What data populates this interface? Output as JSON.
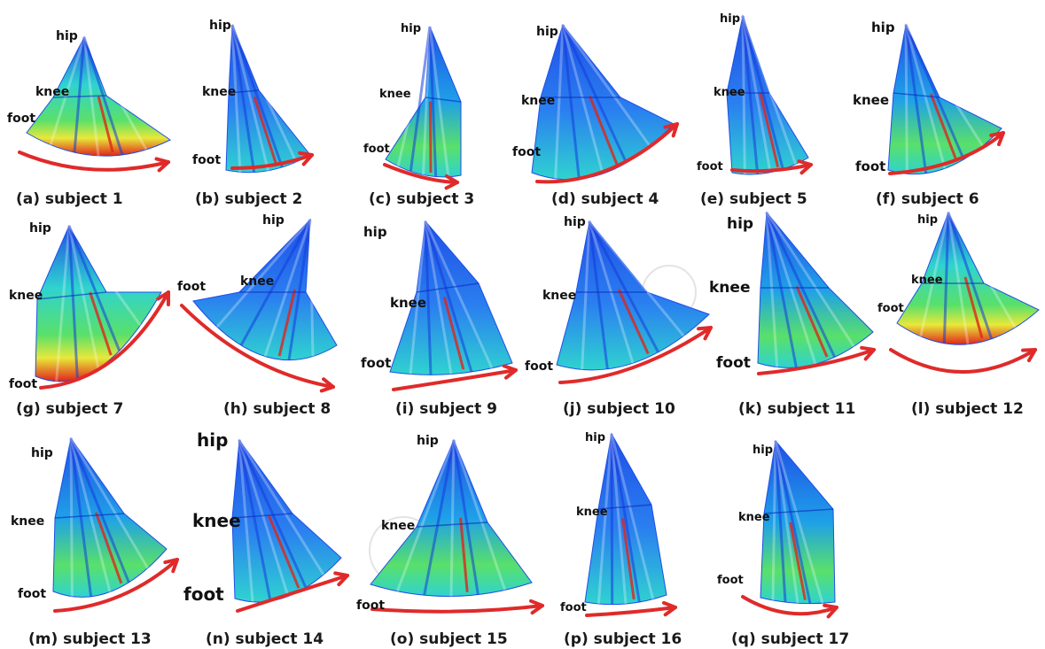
{
  "figure": {
    "joint_labels": {
      "hip": "hip",
      "knee": "knee",
      "foot": "foot"
    },
    "panels": [
      {
        "id": "a",
        "caption": "(a) subject 1"
      },
      {
        "id": "b",
        "caption": "(b) subject 2"
      },
      {
        "id": "c",
        "caption": "(c) subject 3"
      },
      {
        "id": "d",
        "caption": "(d) subject 4"
      },
      {
        "id": "e",
        "caption": "(e) subject 5"
      },
      {
        "id": "f",
        "caption": "(f) subject 6"
      },
      {
        "id": "g",
        "caption": "(g) subject 7"
      },
      {
        "id": "h",
        "caption": "(h) subject 8"
      },
      {
        "id": "i",
        "caption": "(i) subject 9"
      },
      {
        "id": "j",
        "caption": "(j) subject 10"
      },
      {
        "id": "k",
        "caption": "(k) subject 11"
      },
      {
        "id": "l",
        "caption": "(l) subject 12"
      },
      {
        "id": "m",
        "caption": "(m) subject 13"
      },
      {
        "id": "n",
        "caption": "(n) subject 14"
      },
      {
        "id": "o",
        "caption": "(o) subject 15"
      },
      {
        "id": "p",
        "caption": "(p) subject 16"
      },
      {
        "id": "q",
        "caption": "(q) subject 17"
      }
    ],
    "colors": {
      "surface_blue": "#1f4fe6",
      "surface_cyan": "#2fd3d0",
      "surface_green": "#59e06a",
      "surface_yellow": "#e8e83a",
      "surface_red": "#e0241a",
      "arrow": "#e02a2a"
    }
  }
}
